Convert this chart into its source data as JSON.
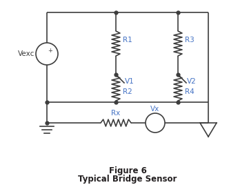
{
  "title_line1": "Figure 6",
  "title_line2": "Typical Bridge Sensor",
  "labels": {
    "Vexc": "Vexc",
    "R1": "R1",
    "R2": "R2",
    "R3": "R3",
    "R4": "R4",
    "V1": "V1",
    "V2": "V2",
    "Rx": "Rx",
    "Vx": "Vx"
  },
  "line_color": "#3d3d3d",
  "text_color": "#4472c4",
  "bg_color": "#ffffff",
  "title_color": "#231f20",
  "lw": 1.2
}
